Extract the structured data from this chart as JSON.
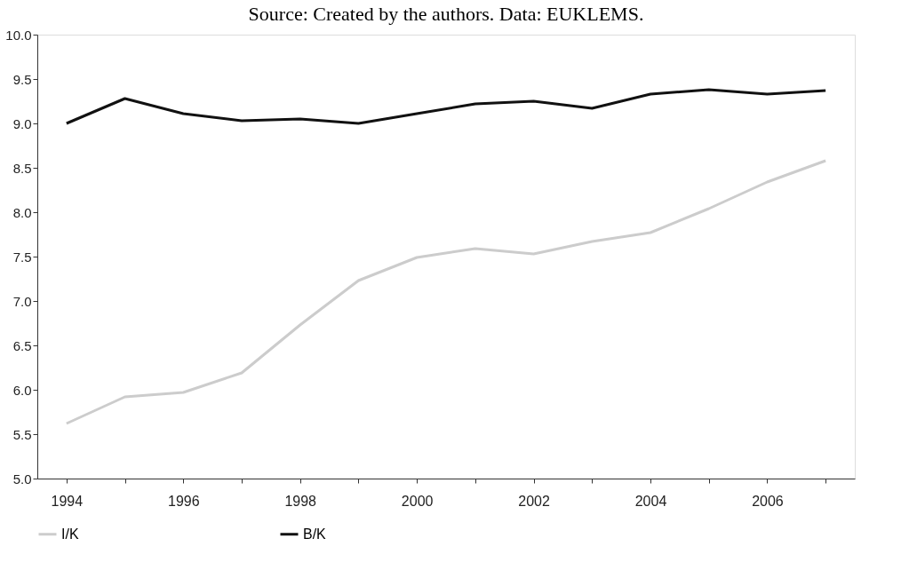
{
  "chart_data": {
    "type": "line",
    "annotations": [
      "Source: Created by the authors. Data: EUKLEMS."
    ],
    "categories": [
      "1994",
      null,
      "1996",
      null,
      "1998",
      null,
      "2000",
      null,
      "2002",
      null,
      "2004",
      null,
      "2006",
      null
    ],
    "series": [
      {
        "name": "I/K",
        "color": "#cccccc",
        "values": [
          5.62,
          5.92,
          5.97,
          6.19,
          6.73,
          7.23,
          7.49,
          7.59,
          7.53,
          7.67,
          7.77,
          8.04,
          8.34,
          8.58
        ]
      },
      {
        "name": "B/K",
        "color": "#111111",
        "values": [
          9.0,
          9.28,
          9.11,
          9.03,
          9.05,
          9.0,
          9.11,
          9.22,
          9.25,
          9.17,
          9.33,
          9.38,
          9.33,
          9.37
        ]
      }
    ],
    "ylim": [
      5.0,
      10.0
    ],
    "yticks": [
      {
        "value": 5,
        "label": "5.0"
      },
      {
        "value": 5.5,
        "label": "5.5"
      },
      {
        "value": 6,
        "label": "6.0"
      },
      {
        "value": 6.5,
        "label": "6.5"
      },
      {
        "value": 7,
        "label": "7.0"
      },
      {
        "value": 7.5,
        "label": "7.5"
      },
      {
        "value": 8,
        "label": "8.0"
      },
      {
        "value": 8.5,
        "label": "8.5"
      },
      {
        "value": 9,
        "label": "9.0"
      },
      {
        "value": 9.5,
        "label": "9.5"
      },
      {
        "value": 10,
        "label": "10.0"
      }
    ],
    "grid": false,
    "legend": "bottom",
    "marker": "none",
    "line_style": "solid"
  }
}
